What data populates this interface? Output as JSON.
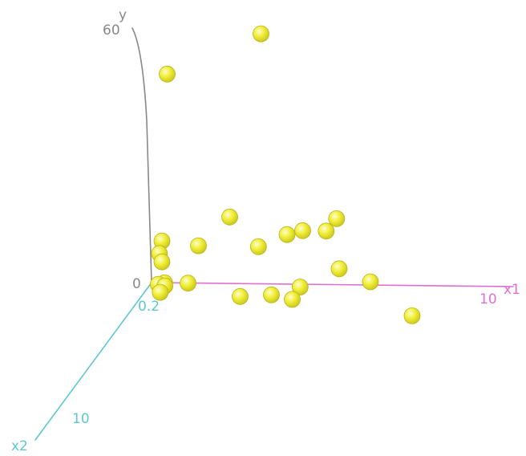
{
  "chart_data": {
    "type": "scatter",
    "dimensions": 3,
    "axes": {
      "x1": {
        "label": "x1",
        "ticks": [
          "10"
        ],
        "color": "#e070d0"
      },
      "x2": {
        "label": "x2",
        "ticks": [
          "0.2",
          "10"
        ],
        "color": "#5cc7cf"
      },
      "y": {
        "label": "y",
        "ticks": [
          "60",
          "0"
        ],
        "color": "#888888"
      }
    },
    "marker": {
      "shape": "sphere",
      "color": "#f2ef3a",
      "highlight": "#fdfdd2",
      "shadow": "#c8c41c"
    },
    "points": [
      {
        "x1": 4.2,
        "x2": 0.0,
        "y": 60
      },
      {
        "x1": 0.6,
        "x2": 0.0,
        "y": 50
      },
      {
        "x1": 3.0,
        "x2": 0.0,
        "y": 16
      },
      {
        "x1": 0.4,
        "x2": 0.0,
        "y": 10
      },
      {
        "x1": 1.8,
        "x2": 0.0,
        "y": 9
      },
      {
        "x1": 0.3,
        "x2": 0.0,
        "y": 7
      },
      {
        "x1": 0.4,
        "x2": 0.0,
        "y": 5
      },
      {
        "x1": 4.1,
        "x2": 0.0,
        "y": 9
      },
      {
        "x1": 5.2,
        "x2": 0.0,
        "y": 12
      },
      {
        "x1": 5.8,
        "x2": 0.0,
        "y": 13
      },
      {
        "x1": 6.7,
        "x2": 0.0,
        "y": 13
      },
      {
        "x1": 7.1,
        "x2": 0.0,
        "y": 16
      },
      {
        "x1": 7.2,
        "x2": 0.0,
        "y": 4
      },
      {
        "x1": 8.4,
        "x2": 0.0,
        "y": 1
      },
      {
        "x1": 0.5,
        "x2": 0.0,
        "y": 0
      },
      {
        "x1": 1.4,
        "x2": 0.0,
        "y": 0
      },
      {
        "x1": 0.3,
        "x2": 0.1,
        "y": 0
      },
      {
        "x1": 0.6,
        "x2": 0.2,
        "y": 0
      },
      {
        "x1": 0.6,
        "x2": 0.6,
        "y": 0
      },
      {
        "x1": 5.7,
        "x2": 0.0,
        "y": -0.5
      },
      {
        "x1": 3.4,
        "x2": 0.0,
        "y": -3
      },
      {
        "x1": 4.6,
        "x2": 0.0,
        "y": -2.5
      },
      {
        "x1": 5.4,
        "x2": 0.0,
        "y": -3.5
      },
      {
        "x1": 10.0,
        "x2": 0.0,
        "y": -7
      }
    ]
  }
}
